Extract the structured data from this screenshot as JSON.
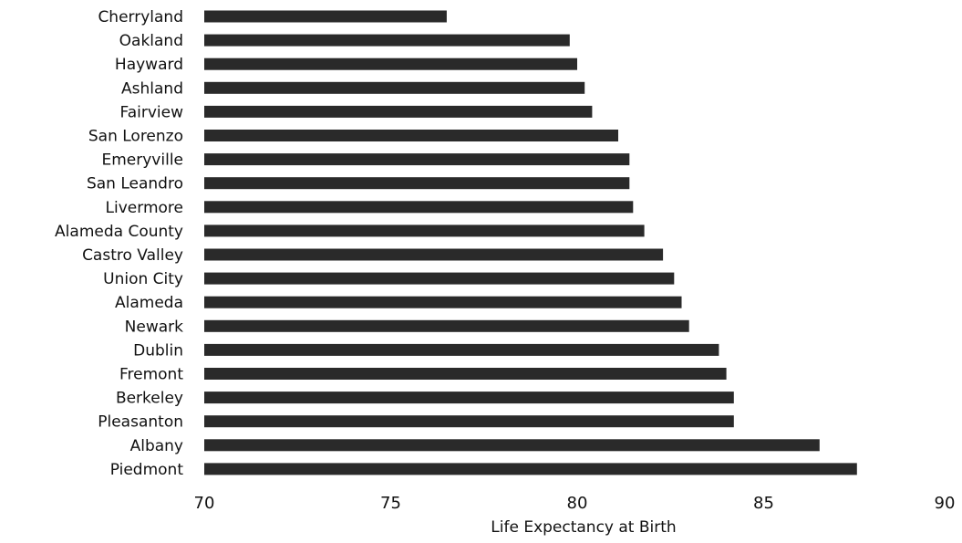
{
  "chart_data": {
    "type": "bar",
    "orientation": "horizontal",
    "categories": [
      "Cherryland",
      "Oakland",
      "Hayward",
      "Ashland",
      "Fairview",
      "San Lorenzo",
      "Emeryville",
      "San Leandro",
      "Livermore",
      "Alameda County",
      "Castro Valley",
      "Union City",
      "Alameda",
      "Newark",
      "Dublin",
      "Fremont",
      "Berkeley",
      "Pleasanton",
      "Albany",
      "Piedmont"
    ],
    "values": [
      76.5,
      79.8,
      80.0,
      80.2,
      80.4,
      81.1,
      81.4,
      81.4,
      81.5,
      81.8,
      82.3,
      82.6,
      82.8,
      83.0,
      83.8,
      84.0,
      84.2,
      84.2,
      86.5,
      87.5
    ],
    "xlabel": "Life Expectancy at Birth",
    "ylabel": "",
    "xlim": [
      70,
      90
    ],
    "xticks": [
      70,
      75,
      80,
      85,
      90
    ],
    "grid": false,
    "bar_color": "#2a2a2a"
  }
}
